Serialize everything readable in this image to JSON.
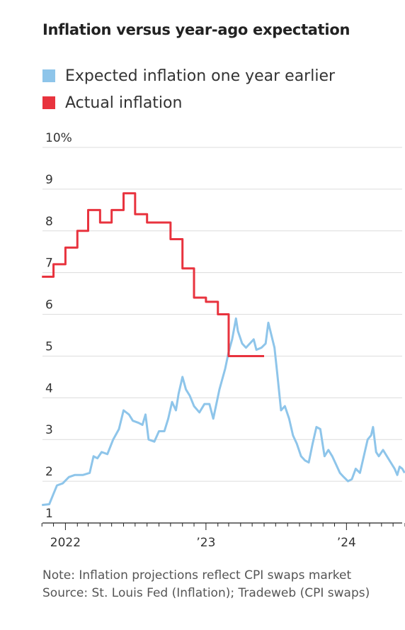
{
  "header": {
    "title": "Inflation versus year-ago expectation"
  },
  "legend": [
    {
      "label": "Expected inflation one year earlier",
      "color": "#8ec5ea"
    },
    {
      "label": "Actual inflation",
      "color": "#e8333e"
    }
  ],
  "chart_data": {
    "type": "line",
    "ylim": [
      1,
      10
    ],
    "y_ticks": [
      {
        "value": 10,
        "label": "10%"
      },
      {
        "value": 9,
        "label": "9"
      },
      {
        "value": 8,
        "label": "8"
      },
      {
        "value": 7,
        "label": "7"
      },
      {
        "value": 6,
        "label": "6"
      },
      {
        "value": 5,
        "label": "5"
      },
      {
        "value": 4,
        "label": "4"
      },
      {
        "value": 3,
        "label": "3"
      },
      {
        "value": 2,
        "label": "2"
      },
      {
        "value": 1,
        "label": "1"
      }
    ],
    "xlim": [
      "2021-10-15",
      "2024-06-01"
    ],
    "x_labels": [
      {
        "date": "2022-01-01",
        "label": "2022"
      },
      {
        "date": "2023-01-01",
        "label": "’23"
      },
      {
        "date": "2024-01-01",
        "label": "’24"
      }
    ],
    "grid": true,
    "legend_position": "top-left",
    "series": [
      {
        "name": "Actual inflation",
        "color": "#e8333e",
        "style": "step",
        "points": [
          [
            "2021-11-01",
            6.9
          ],
          [
            "2021-12-01",
            7.2
          ],
          [
            "2022-01-01",
            7.6
          ],
          [
            "2022-02-01",
            8.0
          ],
          [
            "2022-03-01",
            8.5
          ],
          [
            "2022-04-01",
            8.2
          ],
          [
            "2022-05-01",
            8.5
          ],
          [
            "2022-06-01",
            8.9
          ],
          [
            "2022-07-01",
            8.4
          ],
          [
            "2022-08-01",
            8.2
          ],
          [
            "2022-09-01",
            8.2
          ],
          [
            "2022-10-01",
            7.8
          ],
          [
            "2022-11-01",
            7.1
          ],
          [
            "2022-12-01",
            6.4
          ],
          [
            "2023-01-01",
            6.3
          ],
          [
            "2023-02-01",
            6.0
          ],
          [
            "2023-03-01",
            5.0
          ],
          [
            "2023-04-01",
            5.0
          ],
          [
            "2023-05-01",
            5.0
          ]
        ]
      },
      {
        "name": "Expected inflation one year earlier",
        "color": "#8ec5ea",
        "style": "line",
        "points": [
          [
            "2021-11-01",
            1.43
          ],
          [
            "2021-11-20",
            1.45
          ],
          [
            "2021-12-01",
            1.7
          ],
          [
            "2021-12-10",
            1.9
          ],
          [
            "2021-12-25",
            1.95
          ],
          [
            "2022-01-10",
            2.1
          ],
          [
            "2022-01-25",
            2.15
          ],
          [
            "2022-02-15",
            2.15
          ],
          [
            "2022-03-05",
            2.2
          ],
          [
            "2022-03-15",
            2.6
          ],
          [
            "2022-03-25",
            2.55
          ],
          [
            "2022-04-05",
            2.7
          ],
          [
            "2022-04-20",
            2.65
          ],
          [
            "2022-05-05",
            3.0
          ],
          [
            "2022-05-20",
            3.25
          ],
          [
            "2022-06-01",
            3.7
          ],
          [
            "2022-06-15",
            3.6
          ],
          [
            "2022-06-25",
            3.45
          ],
          [
            "2022-07-10",
            3.4
          ],
          [
            "2022-07-20",
            3.35
          ],
          [
            "2022-07-28",
            3.6
          ],
          [
            "2022-08-05",
            3.0
          ],
          [
            "2022-08-20",
            2.95
          ],
          [
            "2022-09-01",
            3.2
          ],
          [
            "2022-09-15",
            3.2
          ],
          [
            "2022-09-25",
            3.5
          ],
          [
            "2022-10-05",
            3.9
          ],
          [
            "2022-10-15",
            3.7
          ],
          [
            "2022-10-22",
            4.1
          ],
          [
            "2022-11-01",
            4.5
          ],
          [
            "2022-11-10",
            4.2
          ],
          [
            "2022-11-20",
            4.05
          ],
          [
            "2022-12-01",
            3.8
          ],
          [
            "2022-12-15",
            3.65
          ],
          [
            "2022-12-28",
            3.85
          ],
          [
            "2023-01-10",
            3.85
          ],
          [
            "2023-01-20",
            3.5
          ],
          [
            "2023-02-05",
            4.2
          ],
          [
            "2023-02-20",
            4.7
          ],
          [
            "2023-03-01",
            5.1
          ],
          [
            "2023-03-10",
            5.4
          ],
          [
            "2023-03-20",
            5.9
          ],
          [
            "2023-03-25",
            5.6
          ],
          [
            "2023-04-05",
            5.3
          ],
          [
            "2023-04-15",
            5.2
          ],
          [
            "2023-04-25",
            5.3
          ],
          [
            "2023-05-05",
            5.4
          ],
          [
            "2023-05-12",
            5.15
          ],
          [
            "2023-05-25",
            5.2
          ],
          [
            "2023-06-05",
            5.3
          ],
          [
            "2023-06-12",
            5.8
          ],
          [
            "2023-06-20",
            5.5
          ],
          [
            "2023-06-28",
            5.2
          ],
          [
            "2023-07-05",
            4.6
          ],
          [
            "2023-07-15",
            3.7
          ],
          [
            "2023-07-25",
            3.8
          ],
          [
            "2023-08-05",
            3.5
          ],
          [
            "2023-08-15",
            3.1
          ],
          [
            "2023-08-25",
            2.9
          ],
          [
            "2023-09-05",
            2.6
          ],
          [
            "2023-09-15",
            2.5
          ],
          [
            "2023-09-25",
            2.45
          ],
          [
            "2023-10-05",
            2.9
          ],
          [
            "2023-10-15",
            3.3
          ],
          [
            "2023-10-25",
            3.25
          ],
          [
            "2023-11-05",
            2.6
          ],
          [
            "2023-11-15",
            2.75
          ],
          [
            "2023-11-25",
            2.6
          ],
          [
            "2023-12-05",
            2.4
          ],
          [
            "2023-12-15",
            2.2
          ],
          [
            "2023-12-25",
            2.1
          ],
          [
            "2024-01-05",
            2.0
          ],
          [
            "2024-01-15",
            2.05
          ],
          [
            "2024-01-25",
            2.3
          ],
          [
            "2024-02-05",
            2.2
          ],
          [
            "2024-02-15",
            2.6
          ],
          [
            "2024-02-25",
            3.0
          ],
          [
            "2024-03-05",
            3.1
          ],
          [
            "2024-03-10",
            3.3
          ],
          [
            "2024-03-18",
            2.7
          ],
          [
            "2024-03-25",
            2.6
          ],
          [
            "2024-04-05",
            2.75
          ],
          [
            "2024-04-15",
            2.6
          ],
          [
            "2024-04-25",
            2.45
          ],
          [
            "2024-05-05",
            2.3
          ],
          [
            "2024-05-12",
            2.15
          ],
          [
            "2024-05-18",
            2.35
          ],
          [
            "2024-05-25",
            2.3
          ],
          [
            "2024-05-31",
            2.2
          ]
        ]
      }
    ]
  },
  "footer": {
    "note": "Note: Inflation projections reflect CPI swaps market",
    "source": "Source: St. Louis Fed (Inflation); Tradeweb (CPI swaps)"
  }
}
